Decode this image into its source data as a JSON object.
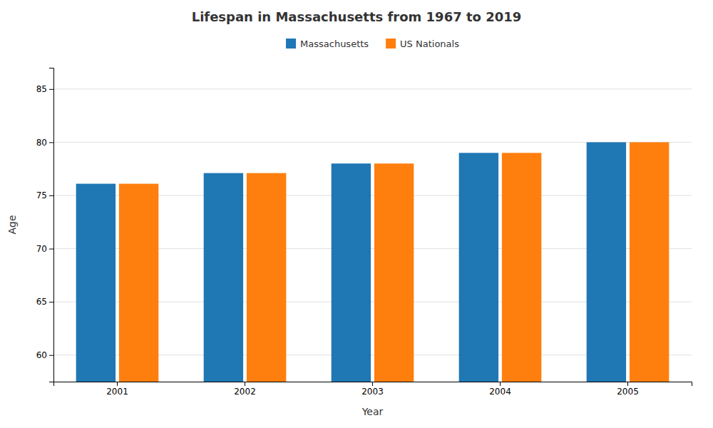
{
  "chart_data": {
    "type": "bar",
    "title": "Lifespan in Massachusetts from 1967 to 2019",
    "xlabel": "Year",
    "ylabel": "Age",
    "categories": [
      "2001",
      "2002",
      "2003",
      "2004",
      "2005"
    ],
    "series": [
      {
        "name": "Massachusetts",
        "values": [
          76.1,
          77.1,
          78.0,
          79.0,
          80.0
        ]
      },
      {
        "name": "US Nationals",
        "values": [
          76.1,
          77.1,
          78.0,
          79.0,
          80.0
        ]
      }
    ],
    "ylim": [
      57.5,
      87
    ],
    "yticks": [
      60,
      65,
      70,
      75,
      80,
      85
    ],
    "grid": true,
    "legend": "top"
  }
}
